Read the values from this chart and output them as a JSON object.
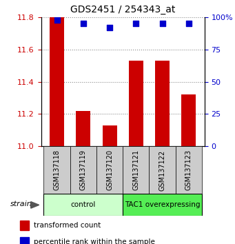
{
  "title": "GDS2451 / 254343_at",
  "categories": [
    "GSM137118",
    "GSM137119",
    "GSM137120",
    "GSM137121",
    "GSM137122",
    "GSM137123"
  ],
  "bar_values": [
    11.8,
    11.22,
    11.13,
    11.53,
    11.53,
    11.32
  ],
  "percentile_values": [
    98,
    95,
    92,
    95,
    95,
    95
  ],
  "ylim_left": [
    11.0,
    11.8
  ],
  "ylim_right": [
    0,
    100
  ],
  "yticks_left": [
    11.0,
    11.2,
    11.4,
    11.6,
    11.8
  ],
  "yticks_right": [
    0,
    25,
    50,
    75,
    100
  ],
  "bar_color": "#cc0000",
  "dot_color": "#0000cc",
  "right_axis_color": "#0000cc",
  "left_axis_color": "#cc0000",
  "group_info": [
    {
      "label": "control",
      "xmin": -0.5,
      "xmax": 2.5,
      "facecolor": "#ccffcc",
      "edgecolor": "#33cc33"
    },
    {
      "label": "TAC1 overexpressing",
      "xmin": 2.5,
      "xmax": 5.5,
      "facecolor": "#55ee55",
      "edgecolor": "#22aa22"
    }
  ],
  "sample_box_color": "#cccccc",
  "legend_items": [
    {
      "color": "#cc0000",
      "label": "transformed count"
    },
    {
      "color": "#0000cc",
      "label": "percentile rank within the sample"
    }
  ],
  "bar_width": 0.55,
  "dot_marker_size": 30
}
